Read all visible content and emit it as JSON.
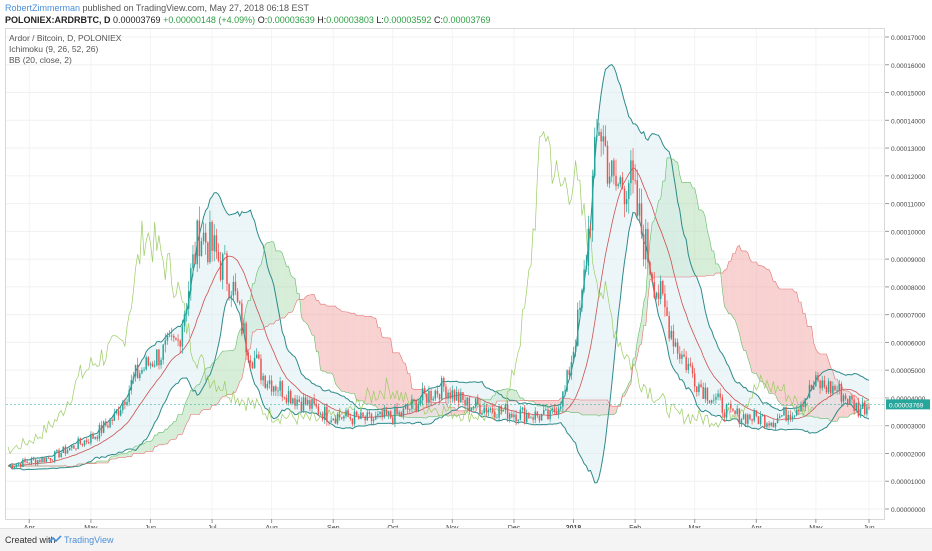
{
  "header": {
    "author": "RobertZimmerman",
    "published": "published on TradingView.com, May 27, 2018 06:18 EST",
    "symbol": "POLONIEX:ARDRBTC, D",
    "open_label": "O:",
    "open": "0.00003769",
    "change": "+0.00000148 (+4.09%)",
    "open_val": "0.00003639",
    "high_label": "H:",
    "high": "0.00003803",
    "low_label": "L:",
    "low": "0.00003592",
    "close_label": "C:",
    "close": "0.00003769",
    "last_price": "0.00003769"
  },
  "legend": {
    "title": "Ardor / Bitcoin, D, POLONIEX",
    "ichimoku": "Ichimoku (9, 26, 52, 26)",
    "bb": "BB (20, close, 2)"
  },
  "footer": {
    "created": "Created with",
    "brand": "TradingView"
  },
  "colors": {
    "up": "#26a69a",
    "down": "#ef5350",
    "bb": "#2f8a8a",
    "cloud_green": "#a5d6a7",
    "cloud_red": "#ef9a9a"
  },
  "chart_data": {
    "type": "candlestick",
    "title": "Ardor / Bitcoin, D, POLONIEX",
    "x_ticks": [
      "Apr",
      "May",
      "Jun",
      "Jul",
      "Aug",
      "Sep",
      "Oct",
      "Nov",
      "Dec",
      "2018",
      "Feb",
      "Mar",
      "Apr",
      "May",
      "Jun"
    ],
    "y_ticks": [
      "0.00017000",
      "0.00016000",
      "0.00015000",
      "0.00014000",
      "0.00013000",
      "0.00012000",
      "0.00011000",
      "0.00010000",
      "0.00009000",
      "0.00008000",
      "0.00007000",
      "0.00006000",
      "0.00005000",
      "0.00004000",
      "0.00003000",
      "0.00002000",
      "0.00001000",
      "0.00000000"
    ],
    "ylim": [
      0,
      0.00017
    ],
    "approx_close_series": [
      {
        "t": 0,
        "v": 1.55e-05
      },
      {
        "t": 20,
        "v": 1.85e-05
      },
      {
        "t": 40,
        "v": 2.6e-05
      },
      {
        "t": 50,
        "v": 3.3e-05
      },
      {
        "t": 60,
        "v": 4.8e-05
      },
      {
        "t": 70,
        "v": 5.5e-05
      },
      {
        "t": 80,
        "v": 6e-05
      },
      {
        "t": 90,
        "v": 0.0001
      },
      {
        "t": 95,
        "v": 9.5e-05
      },
      {
        "t": 105,
        "v": 8.2e-05
      },
      {
        "t": 112,
        "v": 6e-05
      },
      {
        "t": 120,
        "v": 4.8e-05
      },
      {
        "t": 135,
        "v": 4e-05
      },
      {
        "t": 150,
        "v": 3.4e-05
      },
      {
        "t": 170,
        "v": 3.2e-05
      },
      {
        "t": 185,
        "v": 3.4e-05
      },
      {
        "t": 195,
        "v": 4e-05
      },
      {
        "t": 205,
        "v": 4.4e-05
      },
      {
        "t": 215,
        "v": 3.8e-05
      },
      {
        "t": 235,
        "v": 3.5e-05
      },
      {
        "t": 255,
        "v": 3.3e-05
      },
      {
        "t": 262,
        "v": 4.2e-05
      },
      {
        "t": 270,
        "v": 7.5e-05
      },
      {
        "t": 278,
        "v": 0.00014
      },
      {
        "t": 285,
        "v": 0.000115
      },
      {
        "t": 292,
        "v": 0.00012
      },
      {
        "t": 298,
        "v": 0.0001
      },
      {
        "t": 305,
        "v": 8e-05
      },
      {
        "t": 315,
        "v": 5.8e-05
      },
      {
        "t": 325,
        "v": 4.5e-05
      },
      {
        "t": 340,
        "v": 3.4e-05
      },
      {
        "t": 360,
        "v": 3.2e-05
      },
      {
        "t": 370,
        "v": 3.6e-05
      },
      {
        "t": 380,
        "v": 4.5e-05
      },
      {
        "t": 390,
        "v": 4.3e-05
      },
      {
        "t": 400,
        "v": 3.6e-05
      },
      {
        "t": 405,
        "v": 3.77e-05
      }
    ]
  }
}
